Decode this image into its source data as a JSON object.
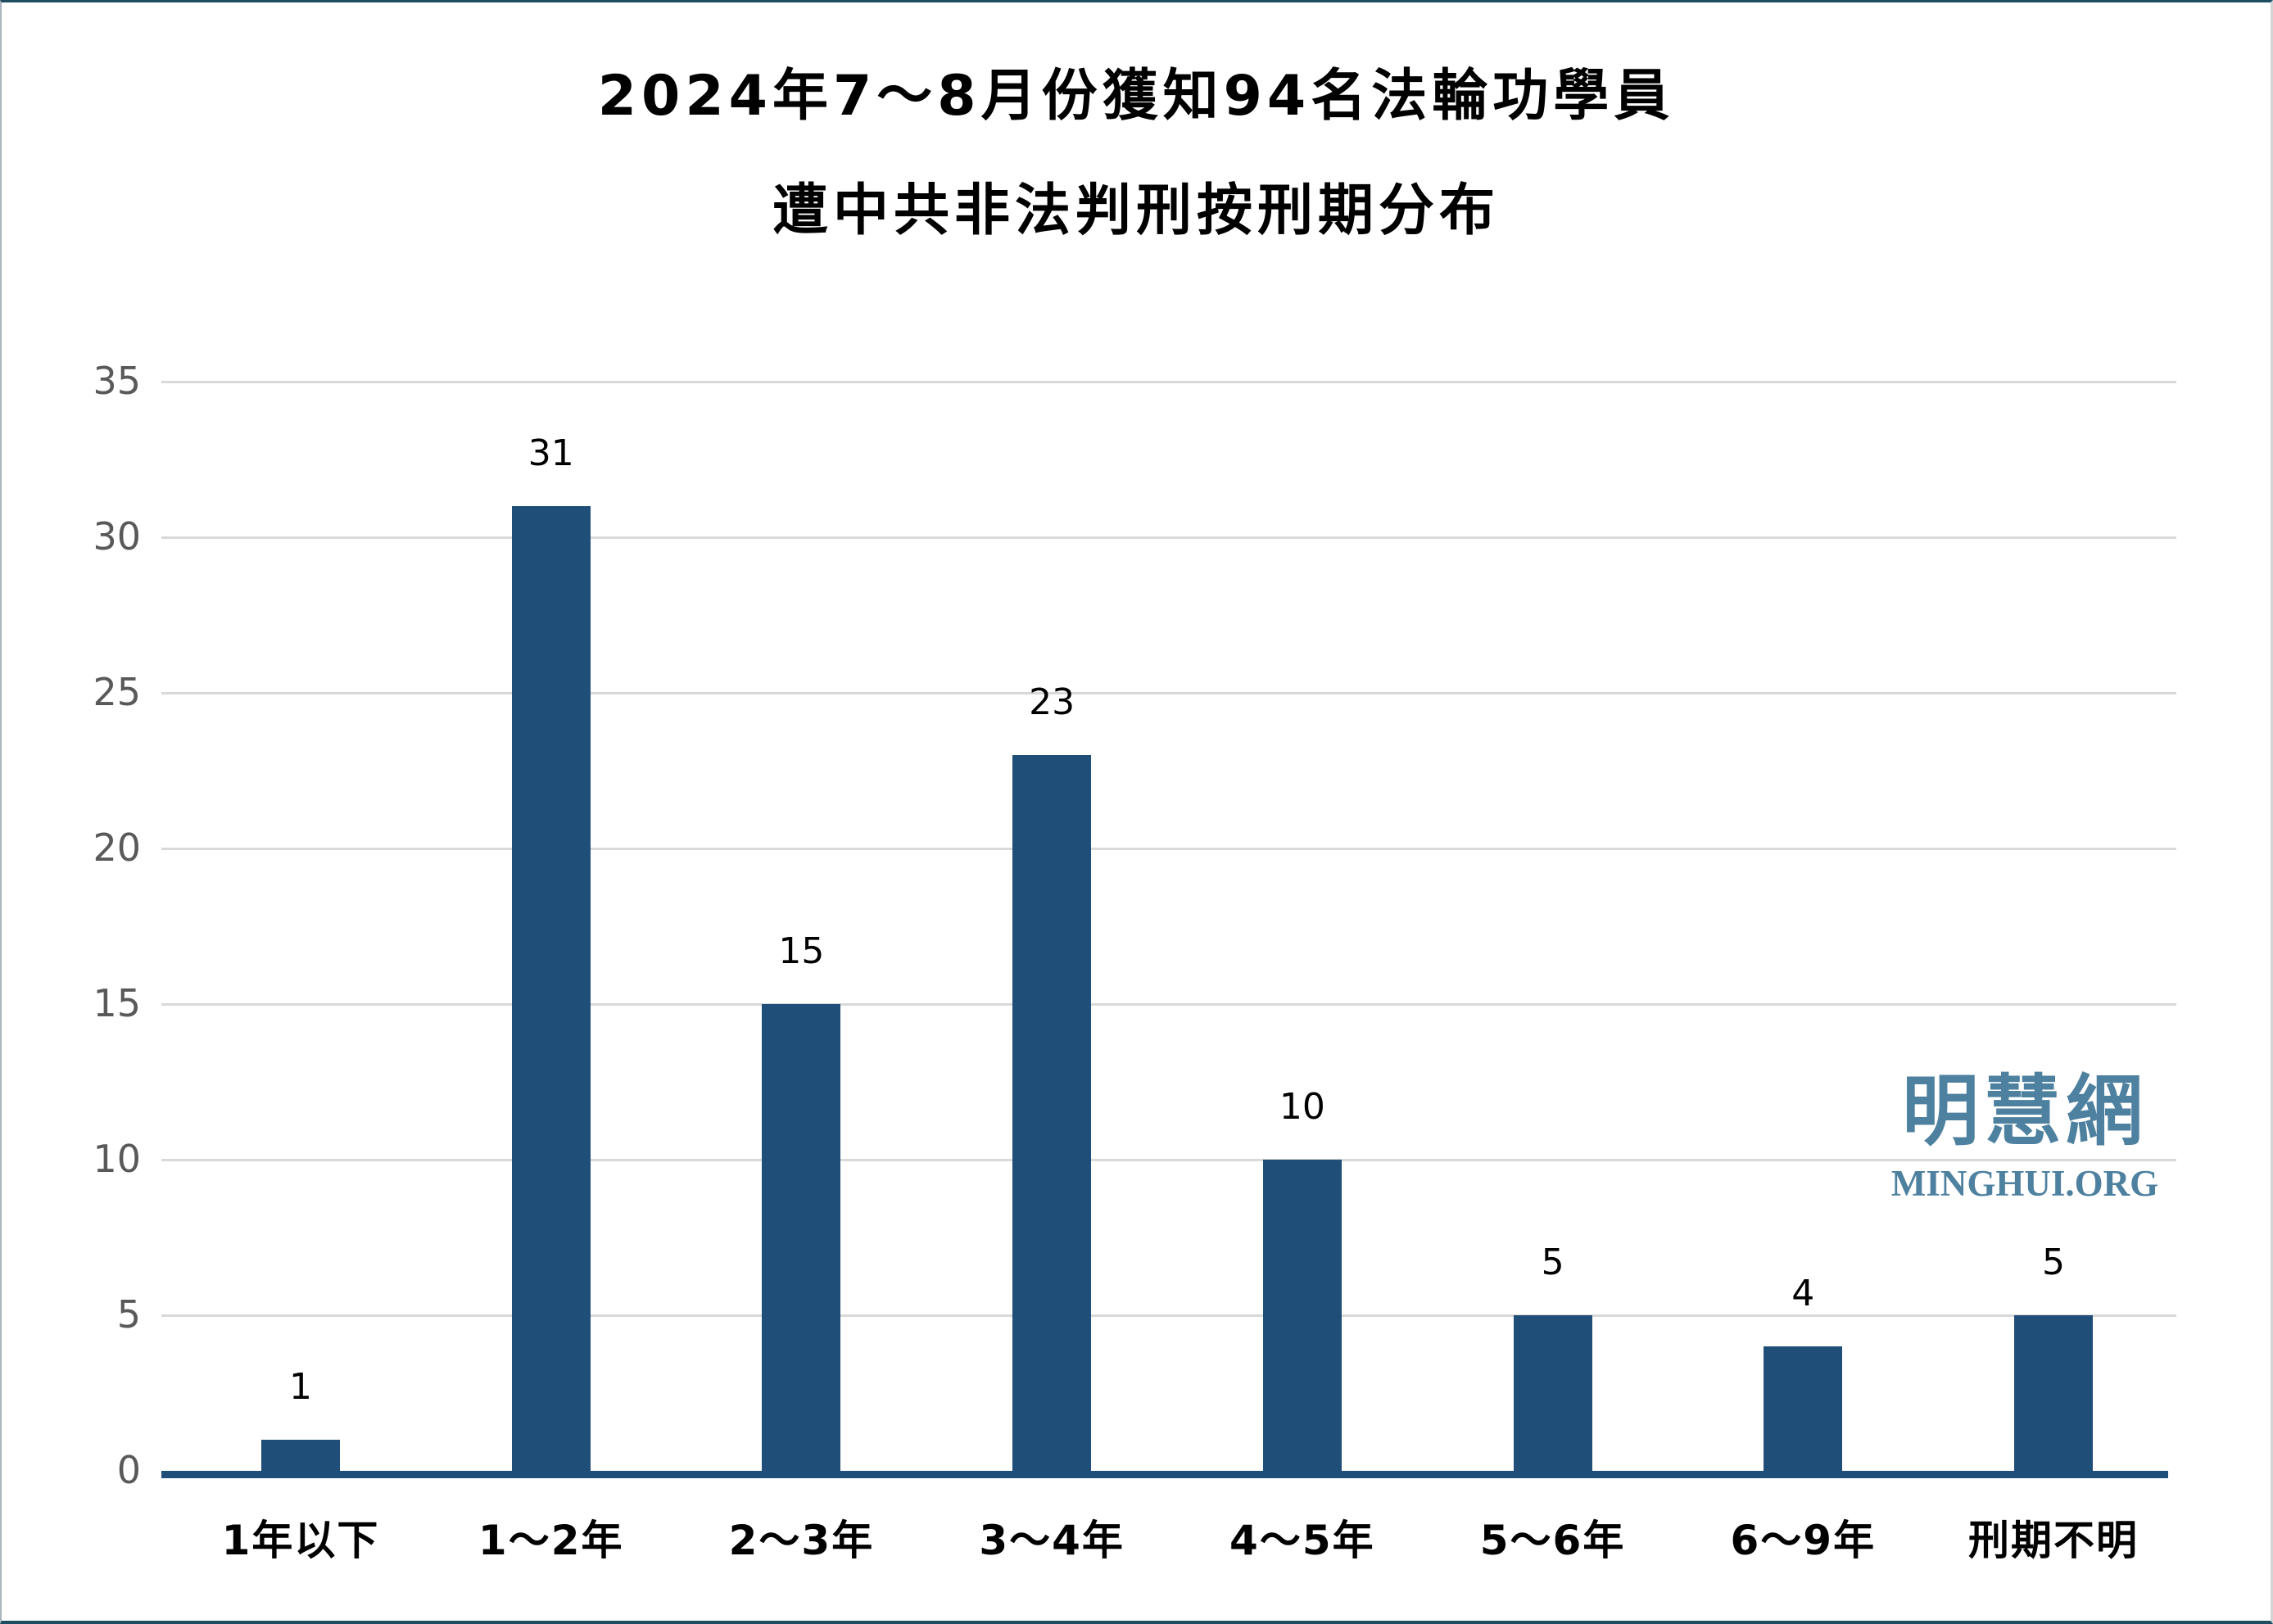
{
  "title": {
    "line1": "2024年7～8月份獲知94名法輪功學員",
    "line2": "遭中共非法判刑按刑期分布"
  },
  "watermark": {
    "cjk": "明慧網",
    "latin": "MINGHUI.ORG"
  },
  "chart_data": {
    "type": "bar",
    "title": "2024年7～8月份獲知94名法輪功學員遭中共非法判刑按刑期分布",
    "categories": [
      "1年以下",
      "1～2年",
      "2～3年",
      "3～4年",
      "4～5年",
      "5～6年",
      "6～9年",
      "刑期不明"
    ],
    "values": [
      1,
      31,
      15,
      23,
      10,
      5,
      4,
      5
    ],
    "value_labels": [
      "1",
      "31",
      "15",
      "23",
      "10",
      "5",
      "4",
      "5"
    ],
    "xlabel": "",
    "ylabel": "",
    "ylim": [
      0,
      35
    ],
    "yticks": [
      0,
      5,
      10,
      15,
      20,
      25,
      30,
      35
    ],
    "grid": true,
    "legend": false,
    "colors": {
      "bar": "#1F4E78",
      "gridline": "#D9D9D9",
      "ytick_text": "#595959",
      "xtick_text": "#000000",
      "value_text": "#000000",
      "axis_line": "#1F4E78",
      "watermark": "#4E81A0",
      "title_text": "#000000",
      "background": "#FFFFFF"
    }
  }
}
